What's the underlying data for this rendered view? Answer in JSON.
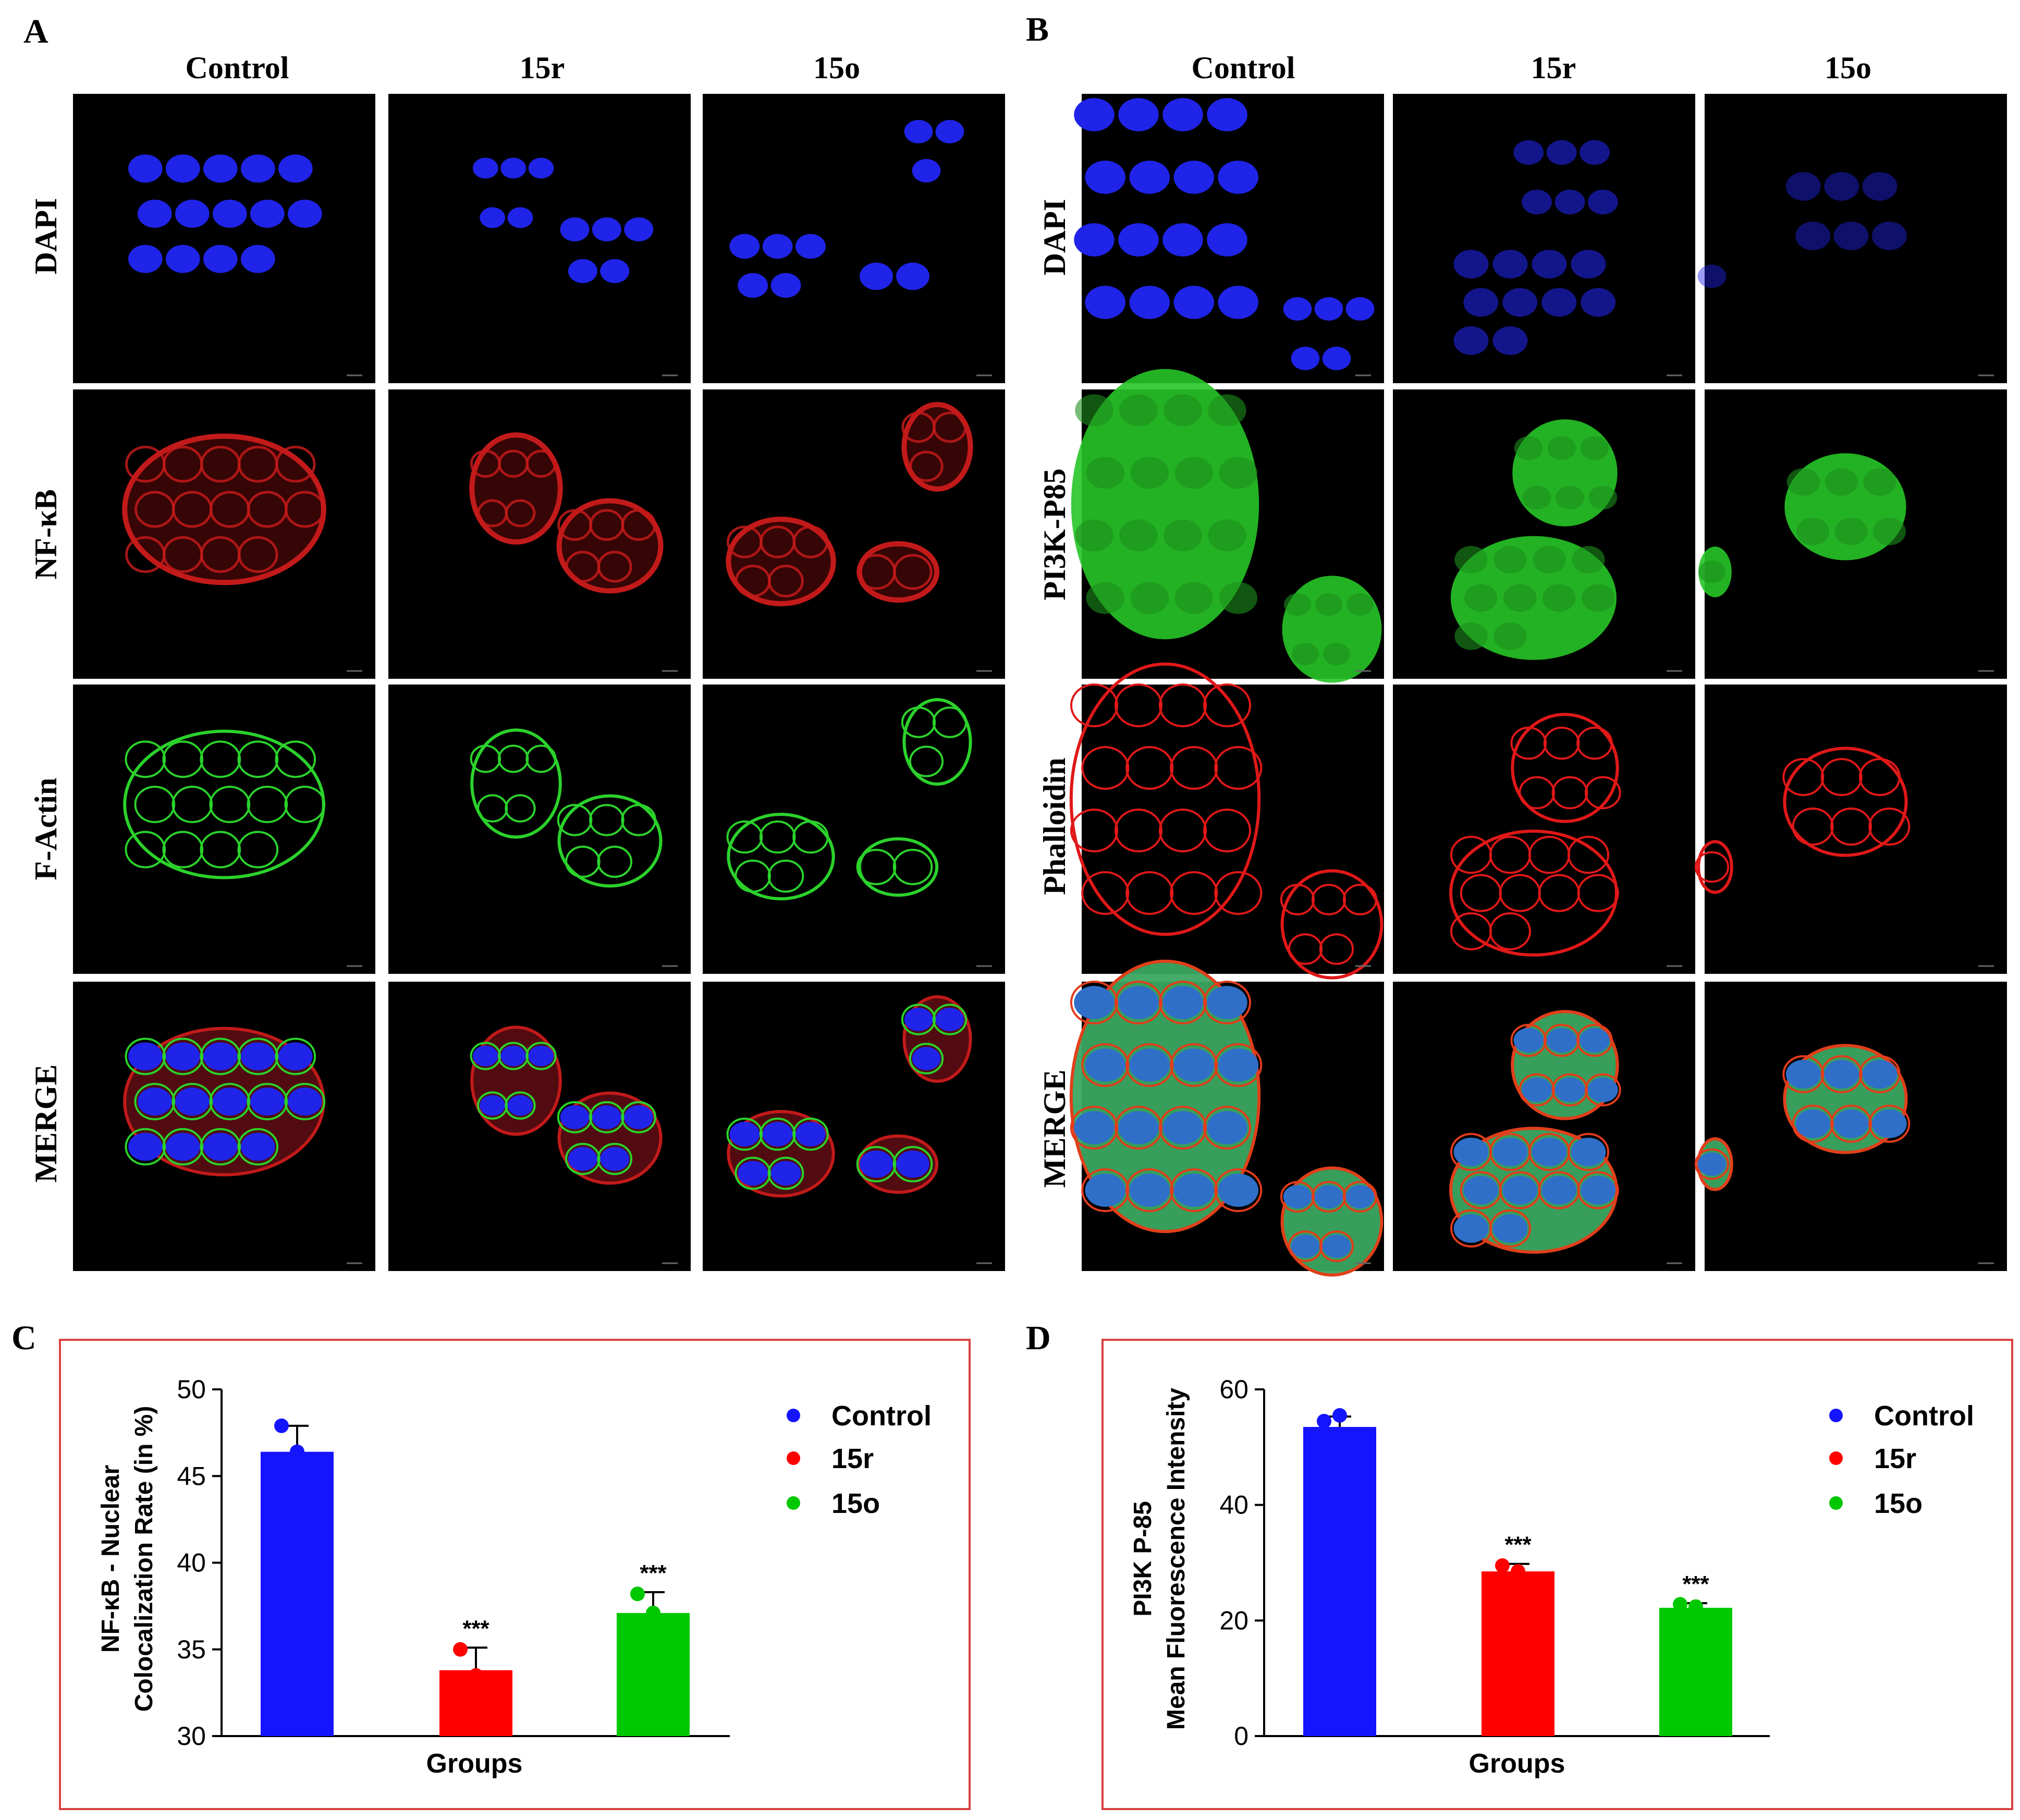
{
  "panels": {
    "A": {
      "letter": "A",
      "columns": [
        "Control",
        "15r",
        "15o"
      ],
      "rows": [
        "DAPI",
        "NF-κB",
        "F-Actin",
        "MERGE"
      ]
    },
    "B": {
      "letter": "B",
      "columns": [
        "Control",
        "15r",
        "15o"
      ],
      "rows": [
        "DAPI",
        "PI3K-P85",
        "Phalloidin",
        "MERGE"
      ]
    },
    "C": {
      "letter": "C"
    },
    "D": {
      "letter": "D"
    }
  },
  "colors": {
    "dapi": "#1f24e8",
    "nfkb": "#c21a1a",
    "factin": "#2bd22b",
    "pi3k": "#27c527",
    "phalloidin": "#e01818",
    "control": "#1414ff",
    "r15": "#ff0000",
    "o15": "#00c800",
    "frame": "#d94040"
  },
  "chart_data": [
    {
      "type": "bar",
      "panel": "C",
      "categories": [
        "Control",
        "15r",
        "15o"
      ],
      "values": [
        46.4,
        33.8,
        37.1
      ],
      "errors": [
        1.5,
        1.3,
        1.2
      ],
      "points": [
        [
          47.9,
          46.4
        ],
        [
          35.0,
          33.5
        ],
        [
          38.2,
          37.1
        ]
      ],
      "significance": [
        "",
        "***",
        "***"
      ],
      "ylabel_lines": [
        "NF-κB - Nuclear",
        "Colocalization Rate (in %)"
      ],
      "xlabel": "Groups",
      "ylim": [
        30,
        50
      ],
      "yticks": [
        30,
        35,
        40,
        45,
        50
      ],
      "legend": [
        "Control",
        "15r",
        "15o"
      ],
      "legend_position": "right"
    },
    {
      "type": "bar",
      "panel": "D",
      "categories": [
        "Control",
        "15r",
        "15o"
      ],
      "values": [
        53.5,
        28.5,
        22.2
      ],
      "errors": [
        1.8,
        1.3,
        0.8
      ],
      "points": [
        [
          54.5,
          55.5
        ],
        [
          29.5,
          28.5
        ],
        [
          22.8,
          22.4
        ]
      ],
      "significance": [
        "",
        "***",
        "***"
      ],
      "ylabel_lines": [
        "PI3K P-85",
        "Mean Fluorescence Intensity"
      ],
      "xlabel": "Groups",
      "ylim": [
        0,
        60
      ],
      "yticks": [
        0,
        20,
        40,
        60
      ],
      "legend": [
        "Control",
        "15r",
        "15o"
      ],
      "legend_position": "right"
    }
  ]
}
